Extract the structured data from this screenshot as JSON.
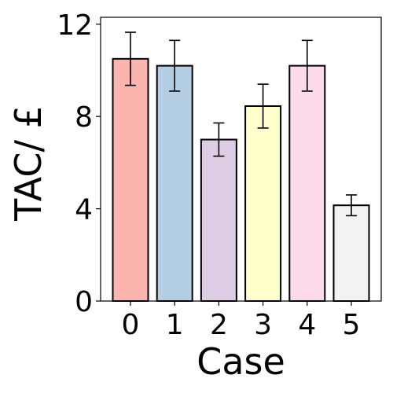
{
  "chart_data": {
    "type": "bar",
    "categories": [
      "0",
      "1",
      "2",
      "3",
      "4",
      "5"
    ],
    "values": [
      10.5,
      10.2,
      7.0,
      8.45,
      10.2,
      4.15
    ],
    "errors": [
      1.15,
      1.1,
      0.72,
      0.95,
      1.1,
      0.45
    ],
    "colors": [
      "#FBB4AE",
      "#B3CDE3",
      "#DECBE4",
      "#FFFFCC",
      "#FDDAEC",
      "#F2F2F2"
    ],
    "title": "",
    "xlabel": "Case",
    "ylabel": "TAC/ £",
    "ylim": [
      0,
      12.3
    ],
    "yticks": [
      0,
      4,
      8,
      12
    ],
    "grid": false,
    "legend": "none"
  }
}
